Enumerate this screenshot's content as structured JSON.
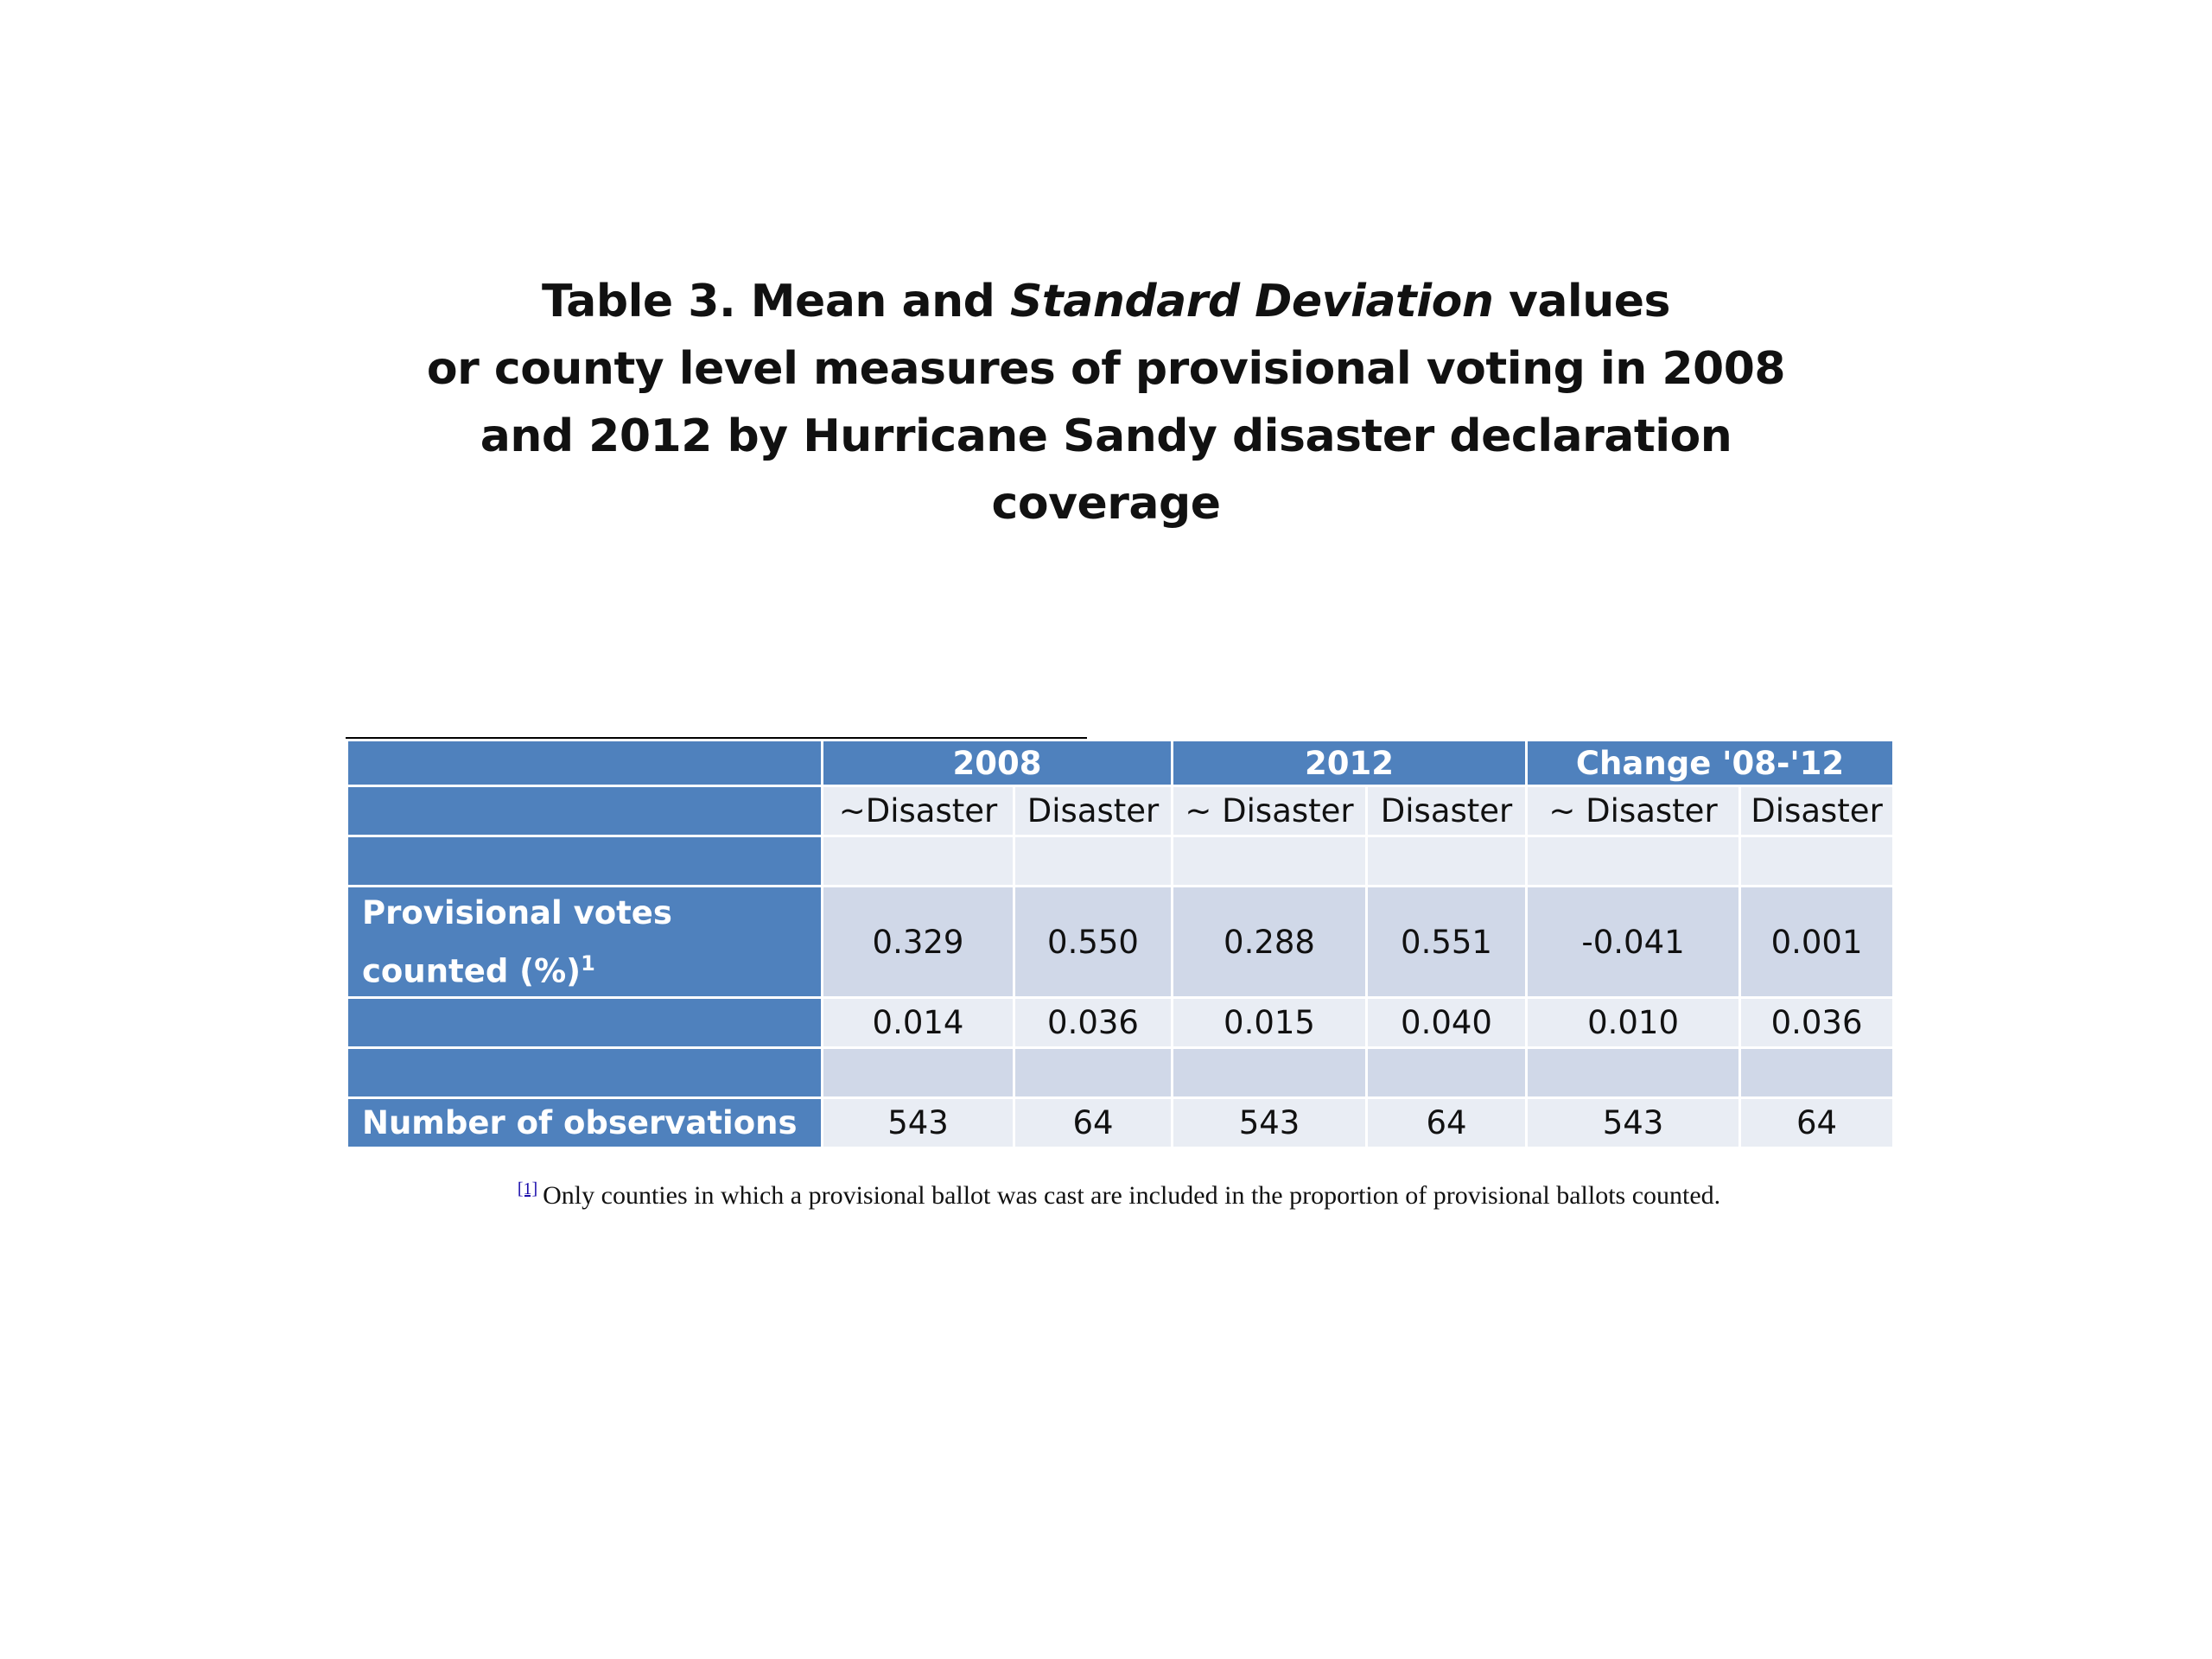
{
  "title": {
    "line1_part1": "Table 3.  Mean and ",
    "line1_italic": "Standard Deviation",
    "line1_part2": " values",
    "line2": "or county level measures of provisional voting in 2008",
    "line3": "and 2012 by Hurricane Sandy disaster declaration",
    "line4": "coverage"
  },
  "table": {
    "year_headers": [
      "2008",
      "2012",
      "Change '08-'12"
    ],
    "sub_headers": [
      "~Disaster",
      "Disaster",
      "~ Disaster",
      "Disaster",
      "~ Disaster",
      "Disaster"
    ],
    "rows": {
      "provisional": {
        "label_line1": "Provisional votes",
        "label_line2": "counted (%)",
        "label_sup": "1",
        "mean": [
          "0.329",
          "0.550",
          "0.288",
          "0.551",
          "-0.041",
          "0.001"
        ],
        "sd": [
          "0.014",
          "0.036",
          "0.015",
          "0.040",
          "0.010",
          "0.036"
        ]
      },
      "observations": {
        "label": "Number of observations",
        "values": [
          "543",
          "64",
          "543",
          "64",
          "543",
          "64"
        ]
      }
    }
  },
  "footnote": {
    "marker": "[1]",
    "text": "Only counties in which a provisional ballot was cast are included in the proportion of provisional ballots counted."
  },
  "colors": {
    "header_blue": "#4f81bd",
    "cell_light": "#e9edf4",
    "cell_mid": "#d0d8e8"
  }
}
